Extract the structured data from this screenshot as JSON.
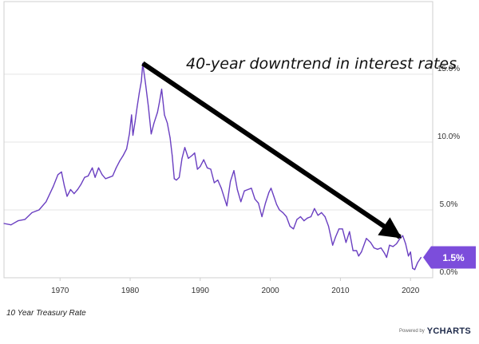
{
  "chart_data": {
    "type": "line",
    "title": "",
    "xlabel": "",
    "ylabel": "",
    "y_unit": "%",
    "x_range": [
      1962,
      2021.8
    ],
    "ylim": [
      0,
      20
    ],
    "x_ticks": [
      1970,
      1980,
      1990,
      2000,
      2010,
      2020
    ],
    "y_ticks": [
      0,
      5,
      10,
      15
    ],
    "y_tick_labels": [
      "0.0%",
      "5.0%",
      "10.0%",
      "15.0%"
    ],
    "grid": "horizontal",
    "series": [
      {
        "name": "10 Year Treasury Rate",
        "color": "#6a3fc1",
        "x": [
          1962.0,
          1963.0,
          1964.0,
          1965.0,
          1966.0,
          1967.0,
          1968.0,
          1969.0,
          1969.7,
          1970.2,
          1970.6,
          1971.0,
          1971.5,
          1972.0,
          1972.5,
          1973.0,
          1973.5,
          1974.0,
          1974.6,
          1975.0,
          1975.5,
          1976.0,
          1976.5,
          1977.0,
          1977.5,
          1978.0,
          1978.5,
          1979.0,
          1979.5,
          1979.9,
          1980.2,
          1980.4,
          1980.7,
          1981.0,
          1981.3,
          1981.6,
          1981.8,
          1982.2,
          1982.6,
          1983.0,
          1983.4,
          1983.9,
          1984.2,
          1984.5,
          1984.9,
          1985.3,
          1985.7,
          1986.0,
          1986.3,
          1986.6,
          1987.0,
          1987.4,
          1987.8,
          1988.3,
          1988.8,
          1989.2,
          1989.6,
          1990.0,
          1990.5,
          1991.0,
          1991.5,
          1992.0,
          1992.5,
          1993.0,
          1993.5,
          1993.8,
          1994.3,
          1994.8,
          1995.3,
          1995.8,
          1996.3,
          1996.8,
          1997.3,
          1997.8,
          1998.3,
          1998.8,
          1999.3,
          1999.8,
          2000.1,
          2000.5,
          2000.9,
          2001.3,
          2001.8,
          2002.3,
          2002.8,
          2003.3,
          2003.8,
          2004.3,
          2004.8,
          2005.3,
          2005.8,
          2006.3,
          2006.8,
          2007.3,
          2007.8,
          2008.3,
          2008.9,
          2009.3,
          2009.8,
          2010.3,
          2010.8,
          2011.3,
          2011.8,
          2012.3,
          2012.6,
          2013.0,
          2013.7,
          2014.3,
          2014.8,
          2015.3,
          2015.8,
          2016.3,
          2016.6,
          2017.0,
          2017.5,
          2018.0,
          2018.5,
          2018.9,
          2019.3,
          2019.7,
          2020.0,
          2020.3,
          2020.6,
          2021.0,
          2021.5
        ],
        "values": [
          4.0,
          3.9,
          4.2,
          4.3,
          4.8,
          5.0,
          5.6,
          6.7,
          7.6,
          7.8,
          6.8,
          6.0,
          6.5,
          6.2,
          6.5,
          6.9,
          7.4,
          7.5,
          8.1,
          7.4,
          8.1,
          7.6,
          7.3,
          7.4,
          7.5,
          8.1,
          8.6,
          9.0,
          9.5,
          10.6,
          12.0,
          10.5,
          11.5,
          12.6,
          13.6,
          14.5,
          15.8,
          14.3,
          12.6,
          10.6,
          11.4,
          12.2,
          13.0,
          13.9,
          12.0,
          11.4,
          10.3,
          9.0,
          7.3,
          7.2,
          7.4,
          8.8,
          9.6,
          8.8,
          9.0,
          9.2,
          8.0,
          8.2,
          8.7,
          8.1,
          8.0,
          7.0,
          7.2,
          6.6,
          5.8,
          5.3,
          7.1,
          7.9,
          6.5,
          5.6,
          6.4,
          6.5,
          6.6,
          5.8,
          5.5,
          4.5,
          5.5,
          6.3,
          6.6,
          6.0,
          5.4,
          5.0,
          4.8,
          4.5,
          3.8,
          3.6,
          4.3,
          4.5,
          4.2,
          4.4,
          4.5,
          5.1,
          4.6,
          4.8,
          4.5,
          3.8,
          2.4,
          3.0,
          3.6,
          3.6,
          2.6,
          3.4,
          2.0,
          2.0,
          1.6,
          1.9,
          2.9,
          2.6,
          2.2,
          2.1,
          2.2,
          1.8,
          1.5,
          2.4,
          2.3,
          2.5,
          2.9,
          3.1,
          2.5,
          1.6,
          1.9,
          0.7,
          0.6,
          1.1,
          1.5
        ]
      }
    ],
    "annotations": [
      {
        "text": "40-year downtrend in interest rates",
        "from": [
          1981.8,
          15.8
        ],
        "to": [
          2018.5,
          3.0
        ]
      }
    ],
    "last_value_badge": {
      "label": "1.5%",
      "value": 1.5,
      "color": "#7c4ddb"
    }
  },
  "legend_label": "10 Year Treasury Rate",
  "brand": {
    "powered": "Powered by",
    "y": "Y",
    "name": "CHARTS"
  }
}
